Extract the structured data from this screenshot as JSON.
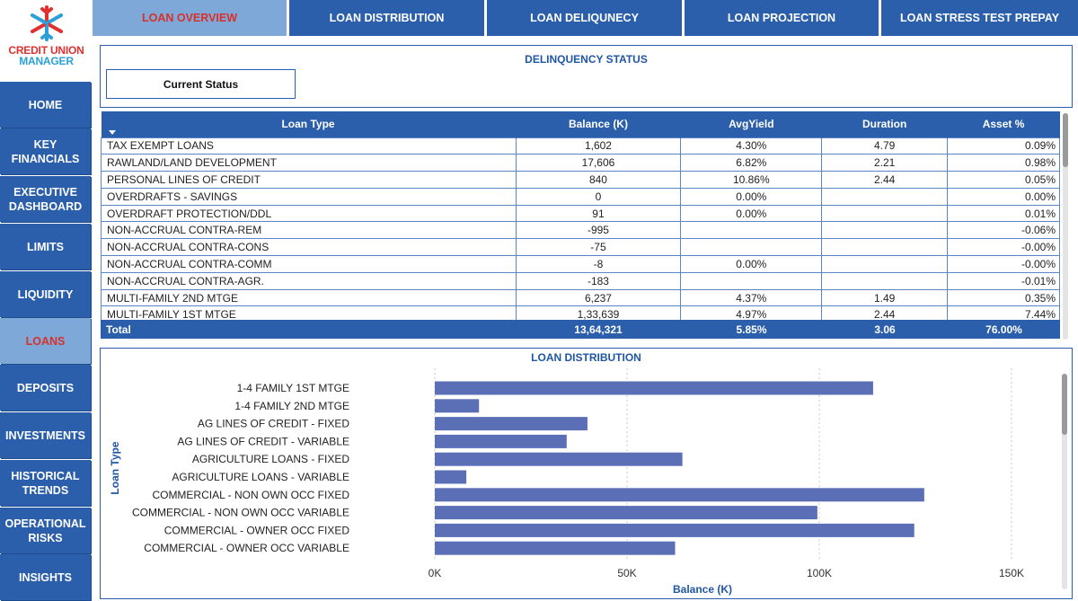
{
  "brand": {
    "line1": "CREDIT UNION",
    "line2": "MANAGER"
  },
  "tabs": [
    {
      "label": "LOAN OVERVIEW",
      "active": true
    },
    {
      "label": "LOAN DISTRIBUTION",
      "active": false
    },
    {
      "label": "LOAN DELIQUNECY",
      "active": false
    },
    {
      "label": "LOAN PROJECTION",
      "active": false
    },
    {
      "label": "LOAN STRESS TEST PREPAY",
      "active": false
    }
  ],
  "sidebar": [
    {
      "label": "HOME",
      "active": false
    },
    {
      "label": "KEY\nFINANCIALS",
      "active": false
    },
    {
      "label": "EXECUTIVE\nDASHBOARD",
      "active": false
    },
    {
      "label": "LIMITS",
      "active": false
    },
    {
      "label": "LIQUIDITY",
      "active": false
    },
    {
      "label": "LOANS",
      "active": true
    },
    {
      "label": "DEPOSITS",
      "active": false
    },
    {
      "label": "INVESTMENTS",
      "active": false
    },
    {
      "label": "HISTORICAL\nTRENDS",
      "active": false
    },
    {
      "label": "OPERATIONAL\nRISKS",
      "active": false
    },
    {
      "label": "INSIGHTS",
      "active": false
    }
  ],
  "delinquency": {
    "title": "DELINQUENCY STATUS",
    "status_button": "Current Status",
    "columns": [
      "Loan Type",
      "Balance (K)",
      "AvgYield",
      "Duration",
      "Asset %"
    ],
    "rows": [
      [
        "TAX EXEMPT LOANS",
        "1,602",
        "4.30%",
        "4.79",
        "0.09%"
      ],
      [
        "RAWLAND/LAND DEVELOPMENT",
        "17,606",
        "6.82%",
        "2.21",
        "0.98%"
      ],
      [
        "PERSONAL LINES OF CREDIT",
        "840",
        "10.86%",
        "2.44",
        "0.05%"
      ],
      [
        "OVERDRAFTS - SAVINGS",
        "0",
        "0.00%",
        "",
        "0.00%"
      ],
      [
        "OVERDRAFT PROTECTION/DDL",
        "91",
        "0.00%",
        "",
        "0.01%"
      ],
      [
        "NON-ACCRUAL CONTRA-REM",
        "-995",
        "",
        "",
        "-0.06%"
      ],
      [
        "NON-ACCRUAL CONTRA-CONS",
        "-75",
        "",
        "",
        "-0.00%"
      ],
      [
        "NON-ACCRUAL CONTRA-COMM",
        "-8",
        "0.00%",
        "",
        "-0.00%"
      ],
      [
        "NON-ACCRUAL CONTRA-AGR.",
        "-183",
        "",
        "",
        "-0.01%"
      ],
      [
        "MULTI-FAMILY 2ND MTGE",
        "6,237",
        "4.37%",
        "1.49",
        "0.35%"
      ],
      [
        "MULTI-FAMILY 1ST MTGE",
        "1,33,639",
        "4.97%",
        "2.44",
        "7.44%"
      ]
    ],
    "total": {
      "label": "Total",
      "balance": "13,64,321",
      "yield": "5.85%",
      "duration": "3.06",
      "asset": "76.00%"
    }
  },
  "chart_data": {
    "type": "bar",
    "orientation": "horizontal",
    "title": "LOAN DISTRIBUTION",
    "xlabel": "Balance (K)",
    "ylabel": "Loan Type",
    "xlim": [
      0,
      150000
    ],
    "xticks": [
      "0K",
      "50K",
      "100K",
      "150K"
    ],
    "xtick_values": [
      0,
      50000,
      100000,
      150000
    ],
    "bar_color": "#5a6fb6",
    "categories": [
      "1-4 FAMILY 1ST MTGE",
      "1-4 FAMILY 2ND MTGE",
      "AG LINES OF CREDIT - FIXED",
      "AG LINES OF CREDIT - VARIABLE",
      "AGRICULTURE LOANS - FIXED",
      "AGRICULTURE LOANS - VARIABLE",
      "COMMERCIAL - NON OWN OCC FIXED",
      "COMMERCIAL - NON OWN OCC VARIABLE",
      "COMMERCIAL - OWNER OCC FIXED",
      "COMMERCIAL - OWNER OCC VARIABLE"
    ],
    "values": [
      114000,
      11500,
      39700,
      34300,
      64400,
      8200,
      127300,
      99500,
      124700,
      62500
    ]
  }
}
